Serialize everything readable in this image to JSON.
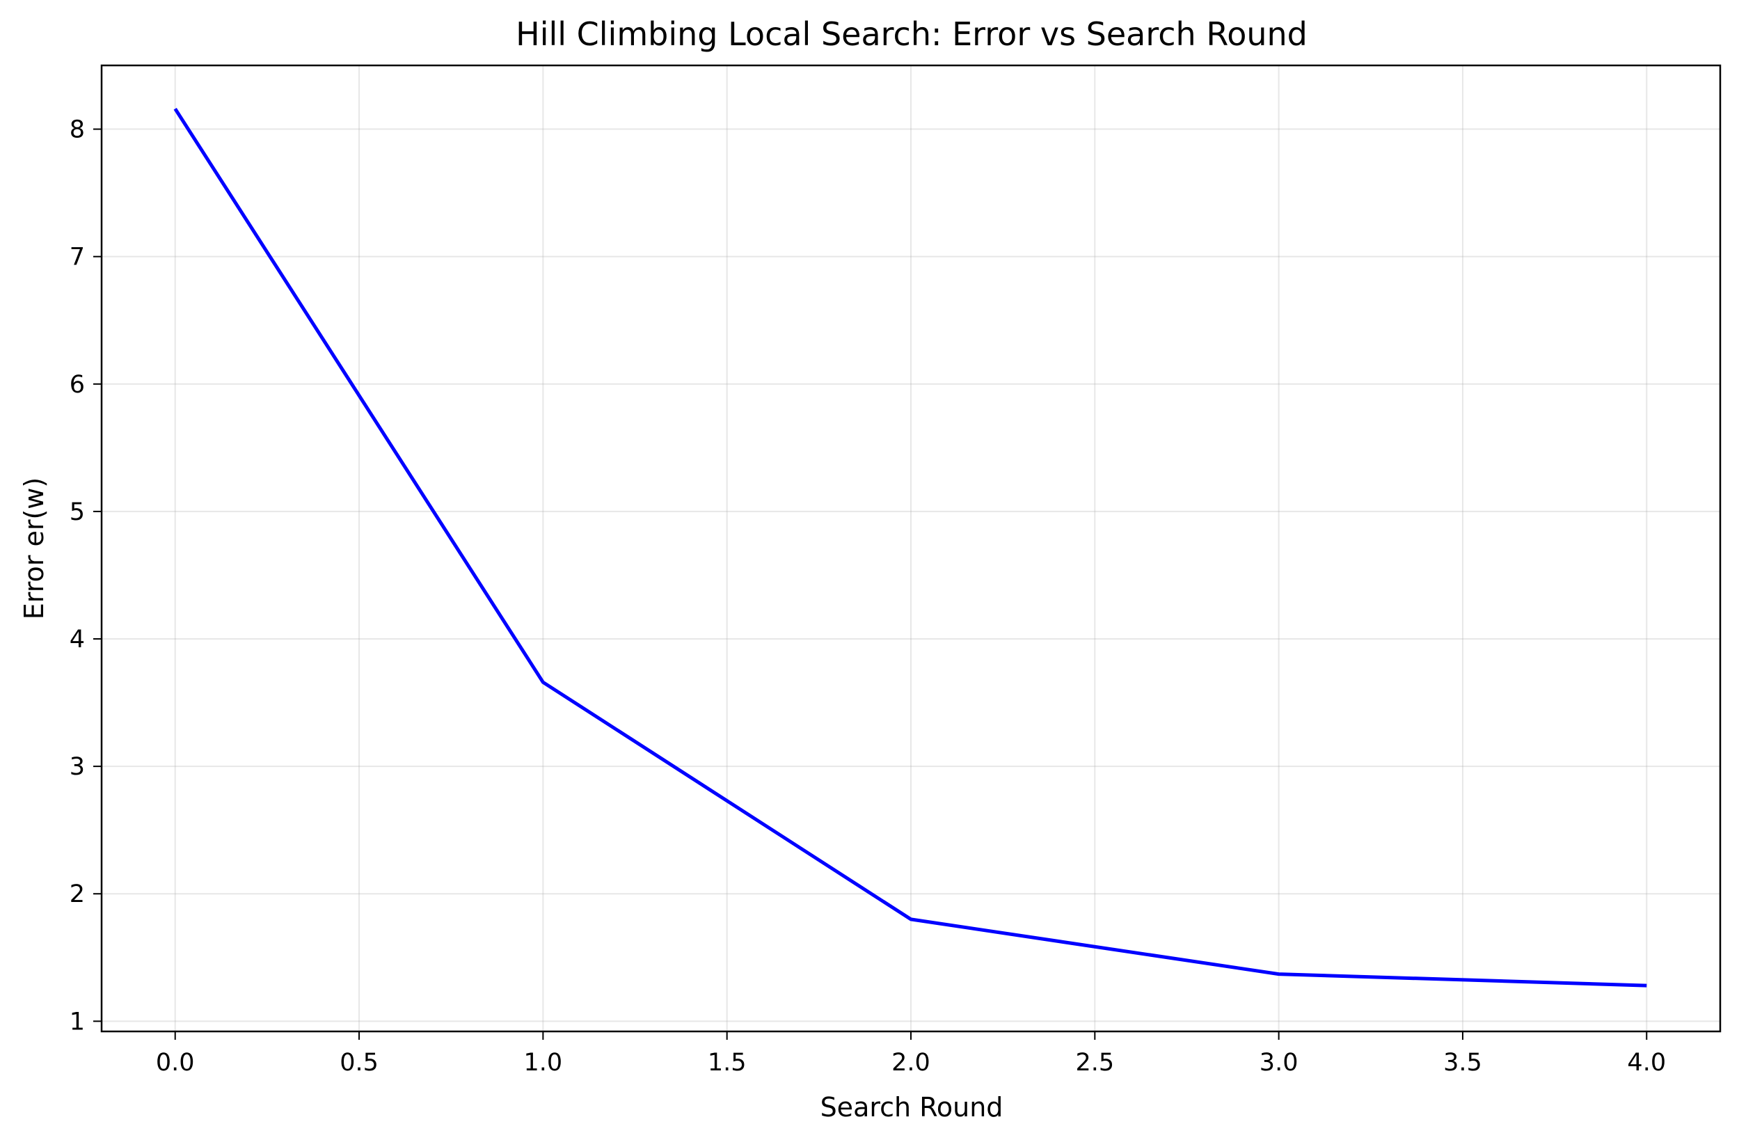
{
  "chart_data": {
    "type": "line",
    "title": "Hill Climbing Local Search: Error vs Search Round",
    "xlabel": "Search Round",
    "ylabel": "Error er(w)",
    "x": [
      0,
      1,
      2,
      3,
      4
    ],
    "series": [
      {
        "values": [
          8.16,
          3.66,
          1.8,
          1.37,
          1.28
        ],
        "color": "#0000ff"
      }
    ],
    "xlim": [
      -0.2,
      4.2
    ],
    "ylim": [
      0.92,
      8.5
    ],
    "xticks": [
      "0.0",
      "0.5",
      "1.0",
      "1.5",
      "2.0",
      "2.5",
      "3.0",
      "3.5",
      "4.0"
    ],
    "yticks": [
      "1",
      "2",
      "3",
      "4",
      "5",
      "6",
      "7",
      "8"
    ],
    "grid": true,
    "legend": "none"
  }
}
